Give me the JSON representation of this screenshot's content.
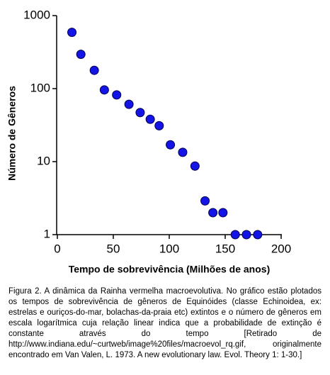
{
  "chart_data": {
    "type": "scatter",
    "xlabel": "Tempo de sobrevivência (Milhões de anos)",
    "ylabel": "Número de Gêneros",
    "x": [
      13,
      21,
      33,
      42,
      53,
      64,
      74,
      83,
      91,
      101,
      112,
      123,
      132,
      139,
      148,
      159,
      169,
      179
    ],
    "values": [
      590,
      295,
      178,
      96,
      82,
      61,
      47,
      38,
      31,
      17,
      13.4,
      8.7,
      2.9,
      2,
      2,
      1,
      1,
      1
    ],
    "color": "#1414e6",
    "xlim": [
      0,
      200
    ],
    "xticks": [
      0,
      50,
      100,
      150,
      200
    ],
    "ylim": [
      1,
      1000
    ],
    "yticks": [
      1,
      10,
      100,
      1000
    ],
    "ylog": true,
    "grid": false
  },
  "caption": "Figura 2. A dinâmica da Rainha vermelha macroevolutiva. No gráfico estão plotados os tempos de sobrevivência de gêneros de Equinóides (classe Echinoidea, ex: estrelas e ouriços-do-mar, bolachas-da-praia etc) extintos e o número de gêneros em escala logarítmica  cuja relação linear indica que a probabilidade de extinção é constante através do tempo [Retirado de http://www.indiana.edu/~curtweb/image%20files/macroevol_rq.gif, originalmente encontrado em Van Valen, L. 1973. A new evolutionary law. Evol. Theory 1: 1-30.]"
}
